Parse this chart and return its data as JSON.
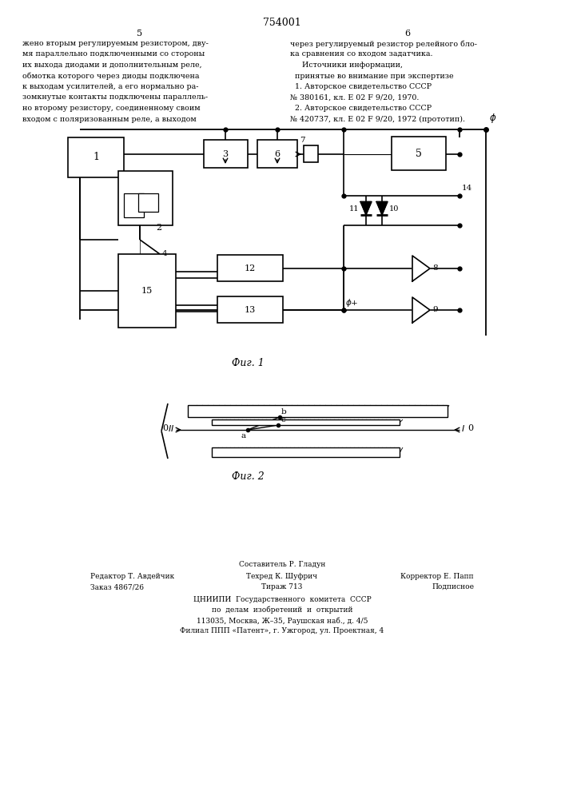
{
  "page_width": 7.07,
  "page_height": 10.0,
  "bg_color": "#ffffff",
  "line_color": "#000000",
  "title_number": "754001",
  "col_numbers": [
    "5",
    "6"
  ],
  "text_left": "жено вторым регулируемым резистором, дву-\nмя параллельно подключенными со стороны\nих выхода диодами и дополнительным реле,\nобмотка которого через диоды подключена\nк выходам усилителей, а его нормально ра-\nзомкнутые контакты подключены параллель-\nно второму резистору, соединенному своим\nвходом с поляризованным реле, а выходом",
  "text_right": "через регулируемый резистор релейного бло-\nка сравнения со входом задатчика.\n     Источники информации,\n  принятые во внимание при экспертизе\n  1. Авторское свидетельство СССР\n№ 380161, кл. Е 02 F 9/20, 1970.\n  2. Авторское свидетельство СССР\n№ 420737, кл. Е 02 F 9/20, 1972 (прототип).",
  "fig1_label": "Фиг. 1",
  "fig2_label": "Фиг. 2",
  "footer_line1": "Составитель Р. Гладун",
  "footer_line2_left": "Редактор Т. Авдейчик",
  "footer_line2_mid": "Техред К. Шуфрич",
  "footer_line2_right": "Корректор Е. Папп",
  "footer_line3_left": "Заказ 4867/26",
  "footer_line3_mid": "Тираж 713",
  "footer_line3_right": "Подписное",
  "footer_line4": "ЦНИИПИ  Государственного  комитета  СССР",
  "footer_line5": "по  делам  изобретений  и  открытий",
  "footer_line6": "113035, Москва, Ж–35, Раушская наб., д. 4/5",
  "footer_line7": "Филиал ППП «Патент», г. Ужгород, ул. Проектная, 4"
}
